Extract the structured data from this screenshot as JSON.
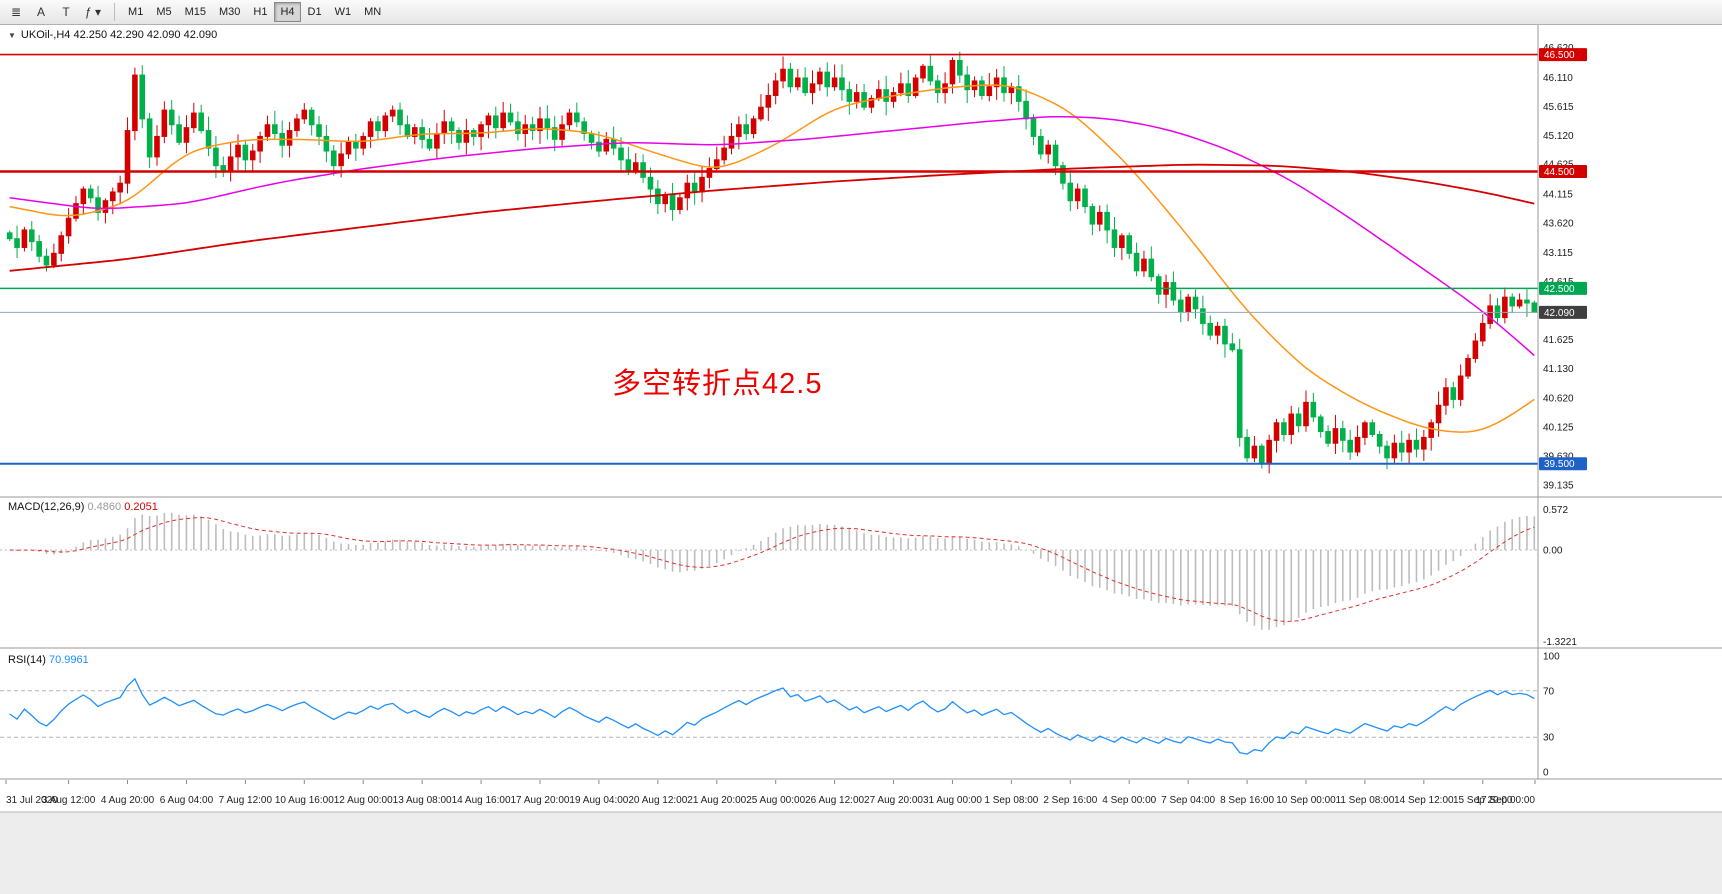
{
  "toolbar": {
    "icon_buttons": [
      {
        "name": "templates-icon",
        "glyph": "≣"
      },
      {
        "name": "arrow-tool-icon",
        "glyph": "A"
      },
      {
        "name": "text-tool-icon",
        "glyph": "T"
      },
      {
        "name": "indicators-dropdown-icon",
        "glyph": "ƒ ▾"
      }
    ],
    "timeframes": [
      {
        "label": "M1",
        "active": false
      },
      {
        "label": "M5",
        "active": false
      },
      {
        "label": "M15",
        "active": false
      },
      {
        "label": "M30",
        "active": false
      },
      {
        "label": "H1",
        "active": false
      },
      {
        "label": "H4",
        "active": true
      },
      {
        "label": "D1",
        "active": false
      },
      {
        "label": "W1",
        "active": false
      },
      {
        "label": "MN",
        "active": false
      }
    ]
  },
  "chart": {
    "title_arrow": "▼",
    "symbol_line": "UKOil-,H4  42.250 42.290 42.090 42.090",
    "annotation": {
      "text": "多空转折点42.5",
      "color": "#ef0000"
    },
    "axis_labels": [
      "46.620",
      "46.110",
      "45.615",
      "45.120",
      "44.625",
      "44.115",
      "43.620",
      "43.115",
      "42.615",
      "41.625",
      "41.130",
      "40.620",
      "40.125",
      "39.630",
      "39.135"
    ],
    "badges": [
      {
        "price": 46.5,
        "label": "46.500",
        "color": "#d40000"
      },
      {
        "price": 44.5,
        "label": "44.500",
        "color": "#d40000"
      },
      {
        "price": 42.5,
        "label": "42.500",
        "color": "#00a651"
      },
      {
        "price": 42.09,
        "label": "42.090",
        "color": "#3f3f3f"
      },
      {
        "price": 39.5,
        "label": "39.500",
        "color": "#1e62c8"
      }
    ],
    "time_labels": [
      "31 Jul 2020",
      "3 Aug 12:00",
      "4 Aug 20:00",
      "6 Aug 04:00",
      "7 Aug 12:00",
      "10 Aug 16:00",
      "12 Aug 00:00",
      "13 Aug 08:00",
      "14 Aug 16:00",
      "17 Aug 20:00",
      "19 Aug 04:00",
      "20 Aug 12:00",
      "21 Aug 20:00",
      "25 Aug 00:00",
      "26 Aug 12:00",
      "27 Aug 20:00",
      "31 Aug 00:00",
      "1 Sep 08:00",
      "2 Sep 16:00",
      "4 Sep 00:00",
      "7 Sep 04:00",
      "8 Sep 16:00",
      "10 Sep 00:00",
      "11 Sep 08:00",
      "14 Sep 12:00",
      "15 Sep 20:00",
      "17 Sep 00:00"
    ]
  },
  "macd_panel": {
    "label": "MACD(12,26,9)",
    "value_main": "0.4860",
    "value_signal": "0.2051",
    "scale": [
      {
        "value": 0.572,
        "label": "0.572"
      },
      {
        "value": 0,
        "label": "0.00"
      },
      {
        "value": -1.3221,
        "label": "-1.3221"
      }
    ]
  },
  "rsi_panel": {
    "label": "RSI(14)",
    "value": "70.9961",
    "levels": [
      {
        "value": 100,
        "label": "100",
        "dashed": false
      },
      {
        "value": 70,
        "label": "70",
        "dashed": true
      },
      {
        "value": 30,
        "label": "30",
        "dashed": true
      },
      {
        "value": 0,
        "label": "0",
        "dashed": false
      }
    ]
  },
  "chart_data": {
    "type": "candlestick",
    "symbol": "UKOil-",
    "timeframe": "H4",
    "ohlc_display": [
      42.25,
      42.29,
      42.09,
      42.09
    ],
    "open_first": 43.45,
    "closes": [
      43.35,
      43.2,
      43.5,
      43.3,
      43.05,
      42.9,
      43.1,
      43.4,
      43.7,
      43.95,
      44.2,
      44.05,
      43.8,
      44.0,
      44.15,
      44.3,
      45.2,
      46.15,
      45.4,
      44.75,
      45.1,
      45.55,
      45.3,
      45.0,
      45.25,
      45.5,
      45.2,
      44.9,
      44.6,
      44.5,
      44.75,
      44.95,
      44.7,
      44.85,
      45.1,
      45.3,
      45.15,
      44.95,
      45.2,
      45.4,
      45.55,
      45.3,
      45.1,
      44.85,
      44.6,
      44.8,
      45.0,
      44.9,
      45.1,
      45.35,
      45.2,
      45.45,
      45.55,
      45.3,
      45.1,
      45.25,
      45.05,
      44.9,
      45.15,
      45.35,
      45.2,
      45.0,
      45.2,
      45.1,
      45.3,
      45.45,
      45.25,
      45.5,
      45.35,
      45.15,
      45.3,
      45.2,
      45.4,
      45.25,
      45.05,
      45.3,
      45.5,
      45.35,
      45.15,
      45.0,
      44.85,
      45.05,
      44.9,
      44.7,
      44.5,
      44.65,
      44.4,
      44.2,
      43.95,
      44.1,
      43.85,
      44.05,
      44.3,
      44.15,
      44.4,
      44.55,
      44.7,
      44.9,
      45.1,
      45.3,
      45.15,
      45.4,
      45.6,
      45.8,
      46.05,
      46.25,
      45.95,
      46.1,
      45.85,
      46.0,
      46.2,
      45.95,
      46.1,
      45.9,
      45.7,
      45.85,
      45.6,
      45.75,
      45.9,
      45.7,
      45.85,
      46.0,
      45.8,
      46.1,
      46.3,
      46.05,
      45.85,
      46.0,
      46.4,
      46.15,
      45.9,
      46.05,
      45.8,
      45.95,
      46.1,
      45.85,
      45.95,
      45.7,
      45.4,
      45.1,
      44.8,
      44.95,
      44.6,
      44.3,
      44.0,
      44.2,
      43.9,
      43.6,
      43.8,
      43.5,
      43.2,
      43.4,
      43.1,
      42.8,
      43.0,
      42.7,
      42.4,
      42.6,
      42.3,
      42.1,
      42.35,
      42.15,
      41.9,
      41.7,
      41.85,
      41.55,
      41.45,
      39.95,
      39.6,
      39.8,
      39.5,
      39.9,
      40.2,
      40.0,
      40.35,
      40.15,
      40.55,
      40.3,
      40.05,
      39.85,
      40.1,
      39.9,
      39.7,
      39.95,
      40.2,
      40.0,
      39.8,
      39.6,
      39.85,
      39.7,
      39.9,
      39.75,
      39.95,
      40.2,
      40.5,
      40.8,
      40.6,
      41.0,
      41.3,
      41.6,
      41.9,
      42.2,
      42.0,
      42.35,
      42.2,
      42.3,
      42.25,
      42.09
    ],
    "colors": {
      "up": "#d40000",
      "down": "#00b04a",
      "ma_fast": "#ff9515",
      "ma_mid": "#e800e8",
      "ma_slow": "#d40000",
      "macd_hist": "#bdbdbd",
      "macd_signal": "#e03030",
      "rsi_line": "#1e90ff"
    },
    "ma_lines": [
      {
        "name": "ma-fast-orange",
        "color": "#ff9515",
        "width": 1.5,
        "points": [
          [
            0,
            43.9
          ],
          [
            8,
            43.7
          ],
          [
            16,
            43.95
          ],
          [
            24,
            44.85
          ],
          [
            32,
            45.05
          ],
          [
            40,
            45.05
          ],
          [
            48,
            45.0
          ],
          [
            56,
            45.15
          ],
          [
            64,
            45.15
          ],
          [
            72,
            45.25
          ],
          [
            80,
            45.15
          ],
          [
            88,
            44.8
          ],
          [
            96,
            44.5
          ],
          [
            104,
            44.95
          ],
          [
            112,
            45.6
          ],
          [
            120,
            45.8
          ],
          [
            128,
            45.95
          ],
          [
            136,
            46.0
          ],
          [
            144,
            45.55
          ],
          [
            152,
            44.6
          ],
          [
            160,
            43.4
          ],
          [
            168,
            42.1
          ],
          [
            176,
            41.1
          ],
          [
            184,
            40.5
          ],
          [
            192,
            40.1
          ],
          [
            199,
            40.0
          ],
          [
            203,
            40.25
          ],
          [
            207,
            40.6
          ]
        ]
      },
      {
        "name": "ma-mid-magenta",
        "color": "#e800e8",
        "width": 1.5,
        "points": [
          [
            0,
            44.05
          ],
          [
            12,
            43.85
          ],
          [
            24,
            43.95
          ],
          [
            36,
            44.3
          ],
          [
            48,
            44.55
          ],
          [
            60,
            44.75
          ],
          [
            72,
            44.9
          ],
          [
            84,
            45.0
          ],
          [
            96,
            44.95
          ],
          [
            108,
            45.05
          ],
          [
            120,
            45.2
          ],
          [
            132,
            45.35
          ],
          [
            142,
            45.45
          ],
          [
            150,
            45.4
          ],
          [
            158,
            45.2
          ],
          [
            166,
            44.85
          ],
          [
            174,
            44.35
          ],
          [
            182,
            43.7
          ],
          [
            190,
            43.0
          ],
          [
            198,
            42.3
          ],
          [
            203,
            41.8
          ],
          [
            207,
            41.35
          ]
        ]
      },
      {
        "name": "ma-slow-red",
        "color": "#d40000",
        "width": 1.8,
        "points": [
          [
            0,
            42.8
          ],
          [
            16,
            43.0
          ],
          [
            32,
            43.3
          ],
          [
            48,
            43.55
          ],
          [
            64,
            43.8
          ],
          [
            80,
            44.0
          ],
          [
            96,
            44.18
          ],
          [
            112,
            44.33
          ],
          [
            128,
            44.45
          ],
          [
            144,
            44.55
          ],
          [
            160,
            44.62
          ],
          [
            172,
            44.6
          ],
          [
            182,
            44.5
          ],
          [
            192,
            44.33
          ],
          [
            200,
            44.15
          ],
          [
            207,
            43.95
          ]
        ]
      }
    ],
    "hlines": [
      {
        "name": "resistance-line-46500",
        "price": 46.5,
        "color": "#d40000",
        "width": 1.6
      },
      {
        "name": "resistance-line-44500",
        "price": 44.5,
        "color": "#d40000",
        "width": 2.4
      },
      {
        "name": "pivot-line-42500",
        "price": 42.5,
        "color": "#00a651",
        "width": 1.6
      },
      {
        "name": "support-line-39500",
        "price": 39.5,
        "color": "#1e62c8",
        "width": 2.0
      }
    ],
    "current_price": 42.09,
    "indicators": {
      "macd": {
        "fast": 12,
        "slow": 26,
        "signal": 9,
        "last_main": 0.486,
        "last_signal": 0.2051,
        "range": [
          -1.3221,
          0.572
        ]
      },
      "rsi": {
        "period": 14,
        "last": 70.9961,
        "levels": [
          30,
          70
        ]
      }
    }
  }
}
